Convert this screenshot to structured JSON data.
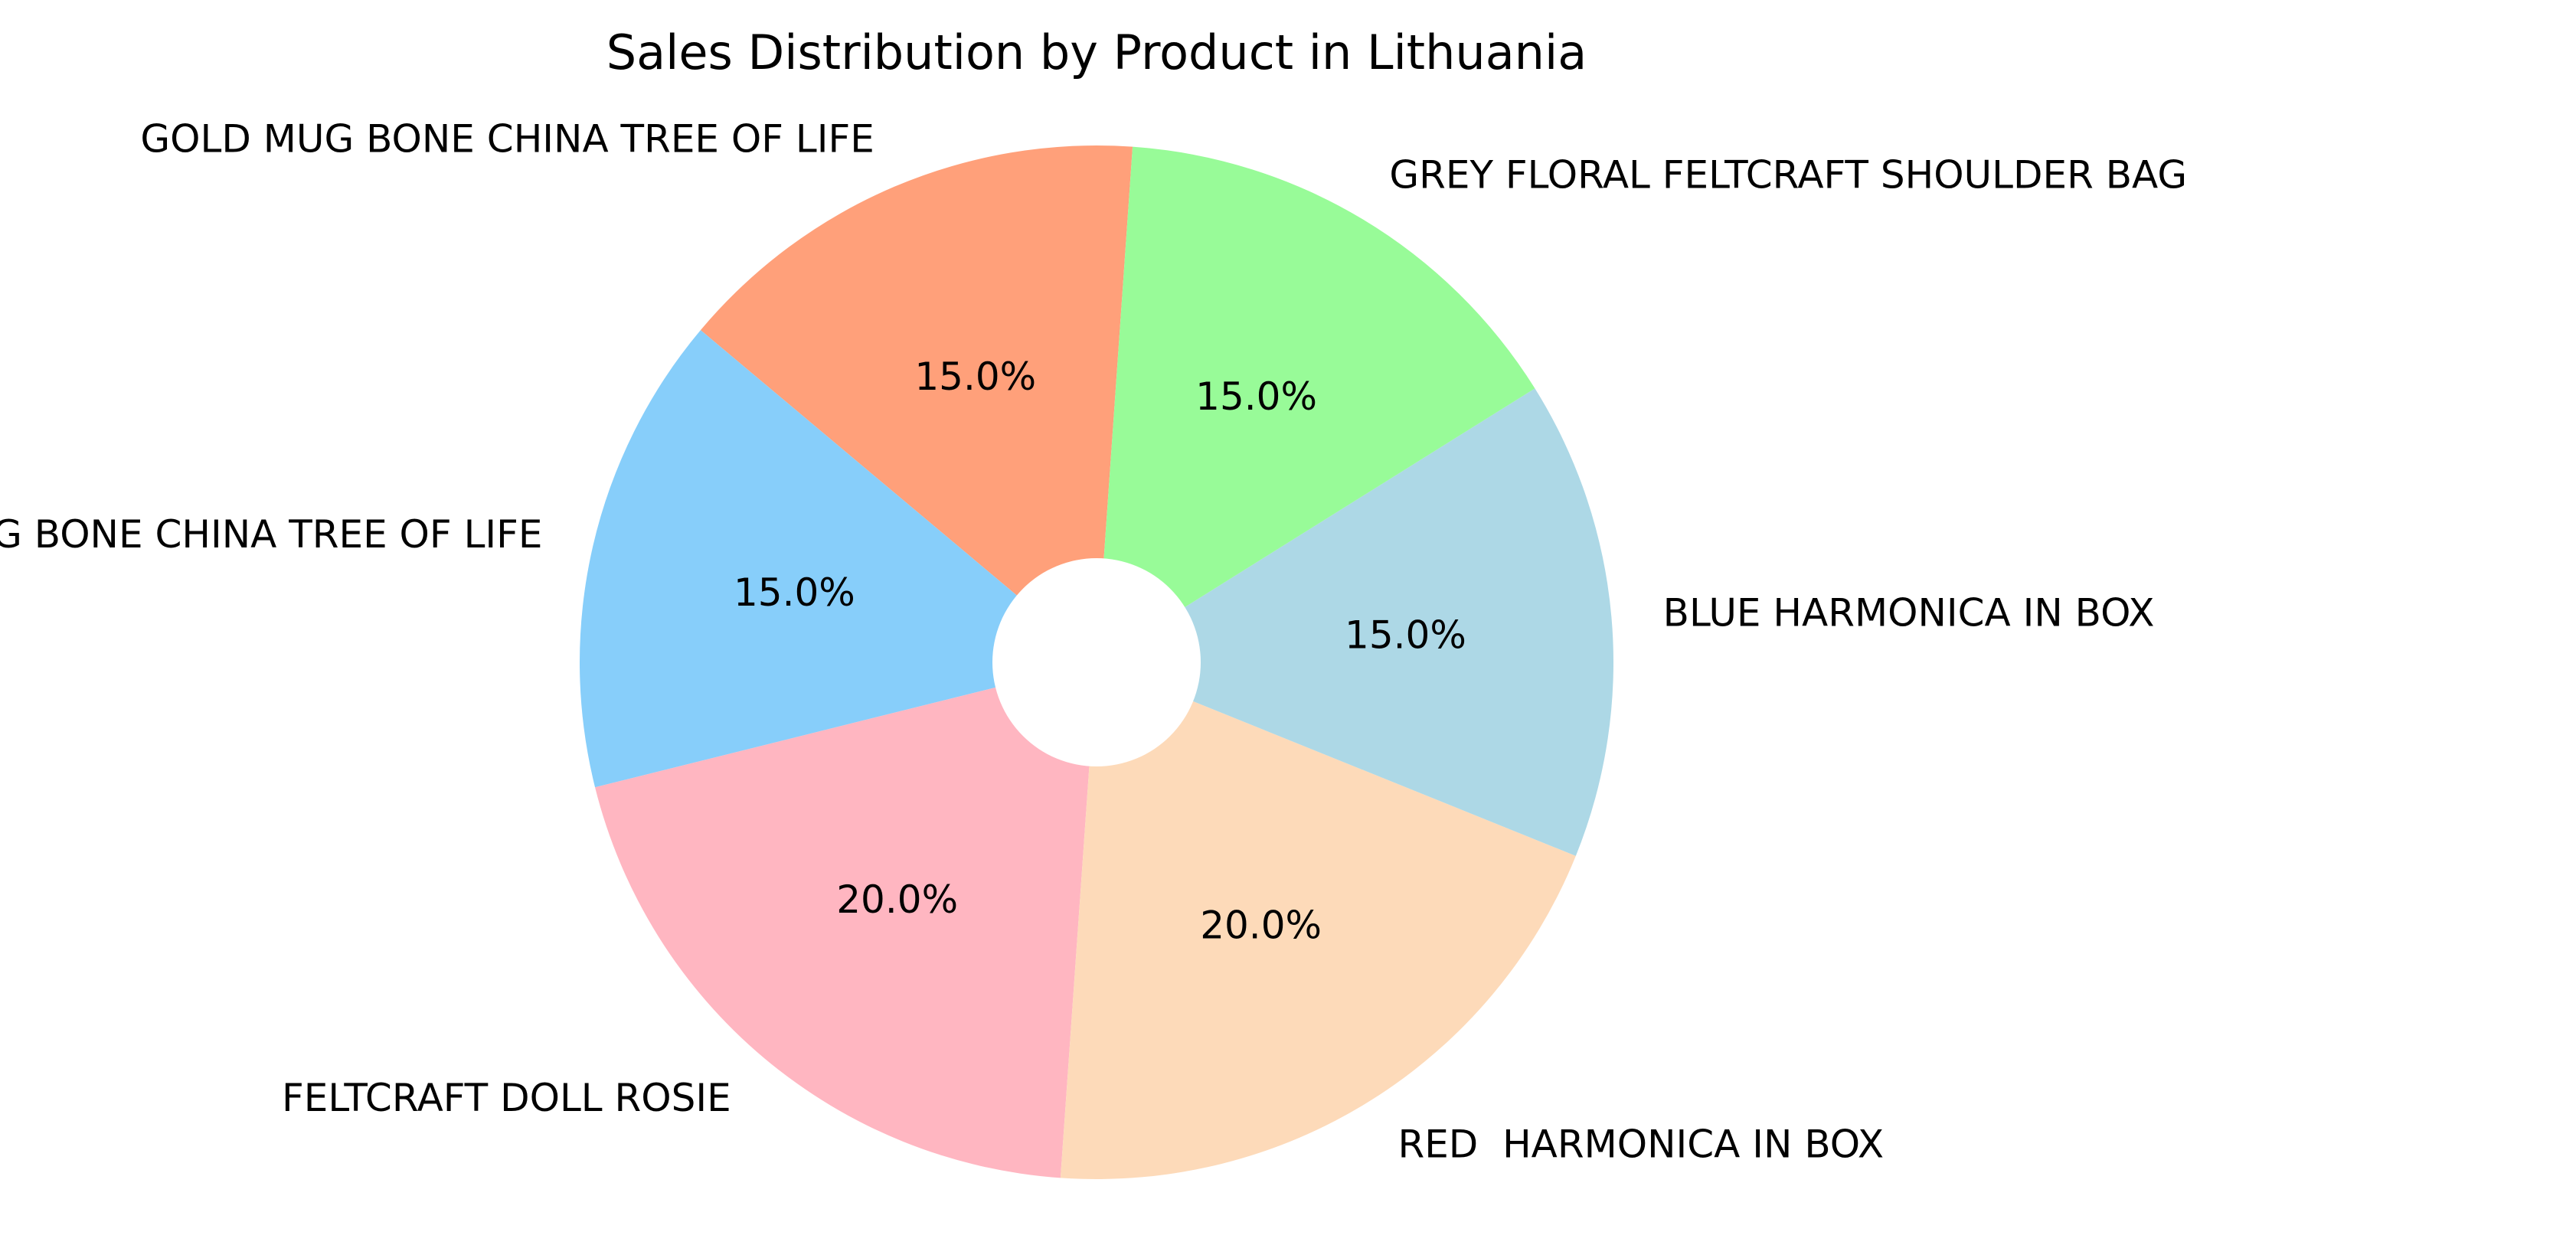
{
  "chart_data": {
    "type": "pie",
    "title": "Sales Distribution by Product in Lithuania",
    "slices": [
      {
        "label": "GOLD MUG BONE CHINA TREE OF LIFE",
        "value": 15.0,
        "pct_label": "15.0%",
        "color": "#FFA07A"
      },
      {
        "label": "SILVER MUG BONE CHINA TREE OF LIFE",
        "value": 15.0,
        "pct_label": "15.0%",
        "color": "#87CEFA"
      },
      {
        "label": "FELTCRAFT DOLL ROSIE",
        "value": 20.0,
        "pct_label": "20.0%",
        "color": "#FFB6C1"
      },
      {
        "label": "RED  HARMONICA IN BOX",
        "value": 20.0,
        "pct_label": "20.0%",
        "color": "#FDDAB9"
      },
      {
        "label": "BLUE HARMONICA IN BOX",
        "value": 15.0,
        "pct_label": "15.0%",
        "color": "#ADD8E6"
      },
      {
        "label": "GREY FLORAL FELTCRAFT SHOULDER BAG",
        "value": 15.0,
        "pct_label": "15.0%",
        "color": "#98FB98"
      }
    ],
    "legend": "none"
  }
}
